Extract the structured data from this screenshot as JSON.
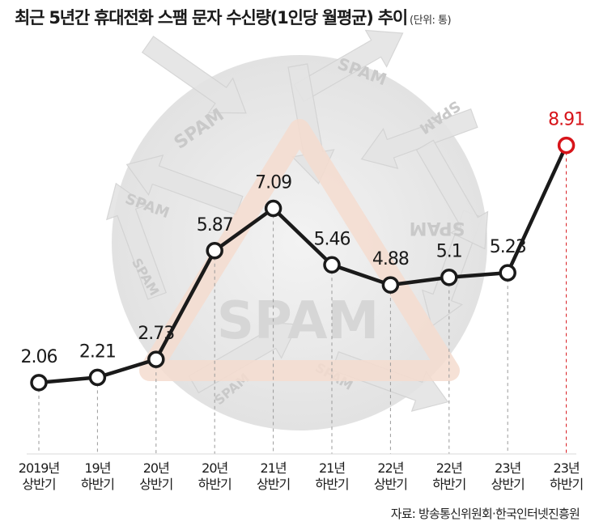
{
  "title": "최근 5년간 휴대전화 스팸 문자 수신량(1인당 월평균) 추이",
  "unit": "(단위: 통)",
  "source": "자료: 방송통신위원회·한국인터넷진흥원",
  "background": {
    "watermark_word": "SPAM"
  },
  "colors": {
    "line": "#1a1a1a",
    "highlight": "#d7141a",
    "guide": "#9a9a9a"
  },
  "chart_data": {
    "type": "line",
    "title": "최근 5년간 휴대전화 스팸 문자 수신량(1인당 월평균) 추이",
    "ylabel": "",
    "xlabel": "",
    "ylim": [
      0,
      10
    ],
    "grid": false,
    "categories": [
      [
        "2019년",
        "상반기"
      ],
      [
        "19년",
        "하반기"
      ],
      [
        "20년",
        "상반기"
      ],
      [
        "20년",
        "하반기"
      ],
      [
        "21년",
        "상반기"
      ],
      [
        "21년",
        "하반기"
      ],
      [
        "22년",
        "상반기"
      ],
      [
        "22년",
        "하반기"
      ],
      [
        "23년",
        "상반기"
      ],
      [
        "23년",
        "하반기"
      ]
    ],
    "series": [
      {
        "values": [
          2.06,
          2.21,
          2.73,
          5.87,
          7.09,
          5.46,
          4.88,
          5.1,
          5.23,
          8.91
        ],
        "labels": [
          "2.06",
          "2.21",
          "2.73",
          "5.87",
          "7.09",
          "5.46",
          "4.88",
          "5.1",
          "5.23",
          "8.91"
        ]
      }
    ],
    "highlight_index": 9
  }
}
